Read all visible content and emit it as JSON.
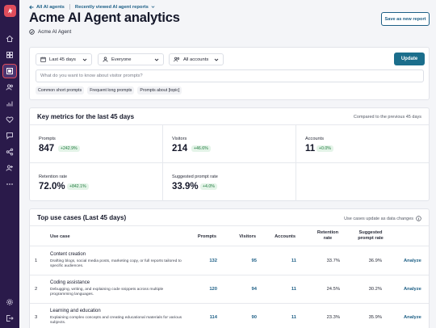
{
  "breadcrumb": {
    "back": "All AI agents",
    "recent": "Recently viewed AI agent reports"
  },
  "page": {
    "title": "Acme AI Agent analytics",
    "agent_name": "Acme AI Agent",
    "save_label": "Save as new report"
  },
  "filters": {
    "date_range": "Last 45 days",
    "audience": "Everyone",
    "accounts": "All accounts",
    "update_label": "Update",
    "ask_placeholder": "What do you want to know about visitor prompts?",
    "suggestions": [
      "Common short prompts",
      "Frequent long prompts",
      "Prompts about [topic]"
    ]
  },
  "metrics": {
    "title": "Key metrics for the last 45 days",
    "comparison": "Compared to the previous 45 days",
    "items": [
      {
        "label": "Prompts",
        "value": "847",
        "delta": "+242.9%"
      },
      {
        "label": "Visitors",
        "value": "214",
        "delta": "+46.6%"
      },
      {
        "label": "Accounts",
        "value": "11",
        "delta": "+0.0%"
      },
      {
        "label": "Retention rate",
        "value": "72.0%",
        "delta": "+842.1%"
      },
      {
        "label": "Suggested prompt rate",
        "value": "33.9%",
        "delta": "+4.0%"
      }
    ]
  },
  "use_cases": {
    "title": "Top use cases (Last 45 days)",
    "note": "Use cases update as data changes",
    "columns": {
      "use_case": "Use case",
      "prompts": "Prompts",
      "visitors": "Visitors",
      "accounts": "Accounts",
      "retention_1": "Retention",
      "retention_2": "rate",
      "suggested_1": "Suggested",
      "suggested_2": "prompt rate"
    },
    "action_label": "Analyze",
    "rows": [
      {
        "rank": "1",
        "title": "Content creation",
        "desc": "Drafting blogs, social media posts, marketing copy, or full reports tailored to specific audiences.",
        "prompts": "132",
        "visitors": "95",
        "accounts": "11",
        "retention": "33.7%",
        "suggested": "36.9%"
      },
      {
        "rank": "2",
        "title": "Coding assistance",
        "desc": "Debugging, writing, and explaining code snippets across multiple programming languages.",
        "prompts": "120",
        "visitors": "94",
        "accounts": "11",
        "retention": "24.5%",
        "suggested": "30.2%"
      },
      {
        "rank": "3",
        "title": "Learning and education",
        "desc": "Explaining complex concepts and creating educational materials for various subjects.",
        "prompts": "114",
        "visitors": "90",
        "accounts": "11",
        "retention": "23.3%",
        "suggested": "35.9%"
      }
    ]
  },
  "colors": {
    "sidebar": "#2a1a4a",
    "accent": "#1d5f86",
    "primary_button": "#1b6e8c",
    "logo": "#e04d5c",
    "delta_positive": "#1f7a3e"
  },
  "sidebar_icons": [
    "home-icon",
    "dashboard-icon",
    "reports-icon",
    "people-icon",
    "analytics-icon",
    "heart-icon",
    "chat-icon",
    "share-icon",
    "user-add-icon",
    "more-icon",
    "settings-icon",
    "logout-icon"
  ]
}
